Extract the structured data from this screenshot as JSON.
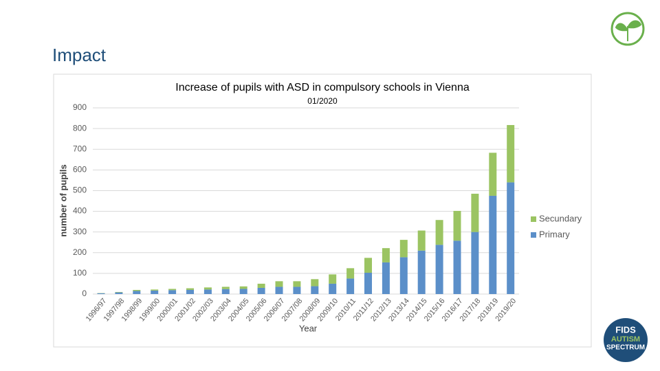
{
  "slide": {
    "title": "Impact"
  },
  "logo": {
    "line1": "FIDS",
    "line2": "AUTISM",
    "line3": "SPECTRUM"
  },
  "chart_data": {
    "type": "stacked_bar",
    "title": "Increase of pupils with ASD in compulsory schools in Vienna",
    "subtitle": "01/2020",
    "x_label": "Year",
    "y_label": "number of pupils",
    "categories": [
      "1996/97",
      "1997/98",
      "1998/99",
      "1999/00",
      "2000/01",
      "2001/02",
      "2002/03",
      "2003/04",
      "2004/05",
      "2005/06",
      "2006/07",
      "2007/08",
      "2008/09",
      "2009/10",
      "2010/11",
      "2011/12",
      "2012/13",
      "2013/14",
      "2014/15",
      "2015/16",
      "2016/17",
      "2017/18",
      "2018/19",
      "2019/20"
    ],
    "series": [
      {
        "name": "Primary",
        "color": "#5b8fc9",
        "values": [
          4,
          8,
          15,
          17,
          19,
          20,
          22,
          24,
          25,
          30,
          35,
          35,
          38,
          50,
          75,
          103,
          153,
          178,
          210,
          238,
          258,
          300,
          475,
          540
        ]
      },
      {
        "name": "Secundary",
        "color": "#9bc462",
        "values": [
          1,
          2,
          5,
          5,
          6,
          8,
          10,
          11,
          12,
          20,
          27,
          27,
          34,
          45,
          50,
          72,
          69,
          84,
          97,
          120,
          144,
          185,
          208,
          277
        ]
      }
    ],
    "ylim": [
      0,
      900
    ],
    "yticks": [
      0,
      100,
      200,
      300,
      400,
      500,
      600,
      700,
      800,
      900
    ],
    "grid": true,
    "legend": "right"
  }
}
